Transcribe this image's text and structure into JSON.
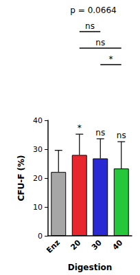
{
  "chart_data": {
    "type": "bar",
    "title": "p = 0.0664",
    "categories": [
      "Enz",
      "20",
      "30",
      "40"
    ],
    "values": [
      22.1,
      28,
      26.8,
      23.3
    ],
    "errors": [
      7.5,
      7.2,
      6.8,
      9.3
    ],
    "colors": [
      "#a6a6a6",
      "#e8262d",
      "#2a2ad4",
      "#26c73a"
    ],
    "ylim": [
      0,
      40
    ],
    "yticks": [
      0,
      10,
      20,
      30,
      40
    ],
    "ylabel": "CFU-F (%)",
    "xlabel": "Digestion",
    "grid": false,
    "marks": [
      null,
      "*",
      "ns",
      "ns"
    ],
    "comparisons": [
      {
        "from": "20",
        "to": "30",
        "label": "ns"
      },
      {
        "from": "20",
        "to": "40",
        "label": "ns"
      },
      {
        "from": "30",
        "to": "40",
        "label": "*"
      }
    ]
  }
}
